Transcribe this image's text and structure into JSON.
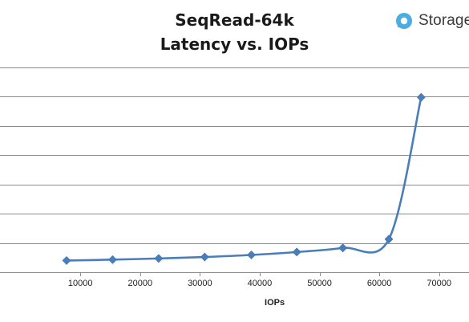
{
  "logo": {
    "text": "Storage",
    "icon": "storage-review-logo-icon",
    "color": "#4aaee0"
  },
  "chart_data": {
    "type": "line",
    "title": "SeqRead-64k",
    "subtitle": "Latency vs. IOPs",
    "xlabel": "IOPs",
    "ylabel": "",
    "xlim": [
      0,
      75000
    ],
    "x_ticks": [
      10000,
      20000,
      30000,
      40000,
      50000,
      60000,
      70000
    ],
    "y_tick_labels_visible": false,
    "y_gridlines": 7,
    "grid": "horizontal",
    "legend": "none",
    "series": [
      {
        "color": "#4a7ebb",
        "marker": "diamond",
        "smooth": true,
        "points": [
          {
            "x": 7700,
            "y": 0.4
          },
          {
            "x": 15400,
            "y": 0.43
          },
          {
            "x": 23100,
            "y": 0.47
          },
          {
            "x": 30800,
            "y": 0.52
          },
          {
            "x": 38600,
            "y": 0.59
          },
          {
            "x": 46200,
            "y": 0.69
          },
          {
            "x": 53900,
            "y": 0.83
          },
          {
            "x": 61600,
            "y": 1.13
          },
          {
            "x": 67000,
            "y": 5.98
          }
        ]
      }
    ]
  }
}
